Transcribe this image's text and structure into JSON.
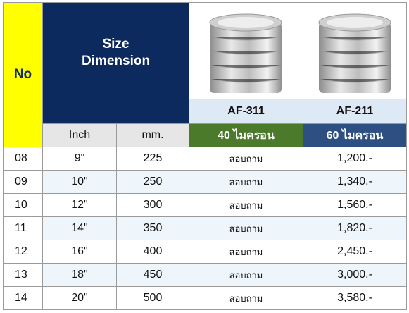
{
  "header": {
    "no": "No",
    "size_dimension": "Size Dimension",
    "units": [
      "Inch",
      "mm."
    ],
    "products": [
      {
        "name": "AF-311",
        "thickness": "40 ไมครอน"
      },
      {
        "name": "AF-211",
        "thickness": "60 ไมครอน"
      }
    ]
  },
  "table": {
    "rows": [
      [
        "08",
        "9\"",
        "225",
        "สอบถาม",
        "1,200.-"
      ],
      [
        "09",
        "10\"",
        "250",
        "สอบถาม",
        "1,340.-"
      ],
      [
        "10",
        "12\"",
        "300",
        "สอบถาม",
        "1,560.-"
      ],
      [
        "11",
        "14\"",
        "350",
        "สอบถาม",
        "1,820.-"
      ],
      [
        "12",
        "16\"",
        "400",
        "สอบถาม",
        "2,450.-"
      ],
      [
        "13",
        "18\"",
        "450",
        "สอบถาม",
        "3,000.-"
      ],
      [
        "14",
        "20\"",
        "500",
        "สอบถาม",
        "3,580.-"
      ]
    ]
  }
}
